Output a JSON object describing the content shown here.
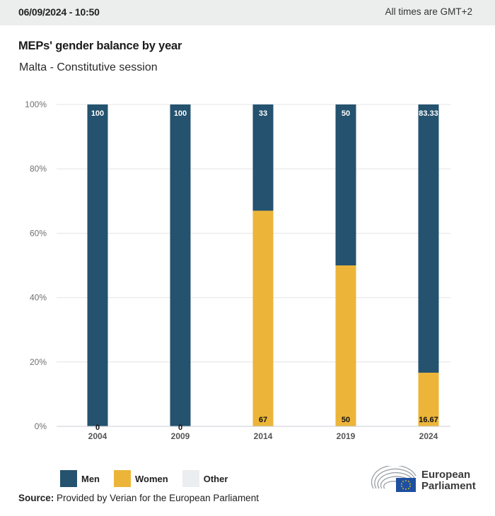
{
  "header": {
    "datetime": "06/09/2024 - 10:50",
    "timezone_note": "All times are GMT+2"
  },
  "title": "MEPs' gender balance by year",
  "subtitle": "Malta - Constitutive session",
  "colors": {
    "men": "#24526f",
    "women": "#ecb53a",
    "other": "#ecedf0",
    "grid": "#e4e4e4",
    "axis": "#c8ccd4"
  },
  "chart_data": {
    "type": "bar",
    "stacked": true,
    "title": "MEPs' gender balance by year",
    "subtitle": "Malta - Constitutive session",
    "xlabel": "",
    "ylabel": "",
    "categories": [
      "2004",
      "2009",
      "2014",
      "2019",
      "2024"
    ],
    "series": [
      {
        "name": "Women",
        "values": [
          0,
          0,
          67,
          50,
          16.67
        ],
        "labels": [
          "0",
          "0",
          "67",
          "50",
          "16.67"
        ]
      },
      {
        "name": "Men",
        "values": [
          100,
          100,
          33,
          50,
          83.33
        ],
        "labels": [
          "100",
          "100",
          "33",
          "50",
          "83.33"
        ]
      },
      {
        "name": "Other",
        "values": [
          0,
          0,
          0,
          0,
          0
        ]
      }
    ],
    "ylim": [
      0,
      100
    ],
    "yticks": [
      "0%",
      "20%",
      "40%",
      "60%",
      "80%",
      "100%"
    ],
    "ytick_values": [
      0,
      20,
      40,
      60,
      80,
      100
    ],
    "grid": true,
    "legend_position": "bottom-left"
  },
  "legend": [
    {
      "label": "Men",
      "color_key": "men"
    },
    {
      "label": "Women",
      "color_key": "women"
    },
    {
      "label": "Other",
      "color_key": "other"
    }
  ],
  "source": {
    "label": "Source:",
    "text": "Provided by Verian for the European Parliament"
  },
  "logo": {
    "line1": "European",
    "line2": "Parliament"
  }
}
